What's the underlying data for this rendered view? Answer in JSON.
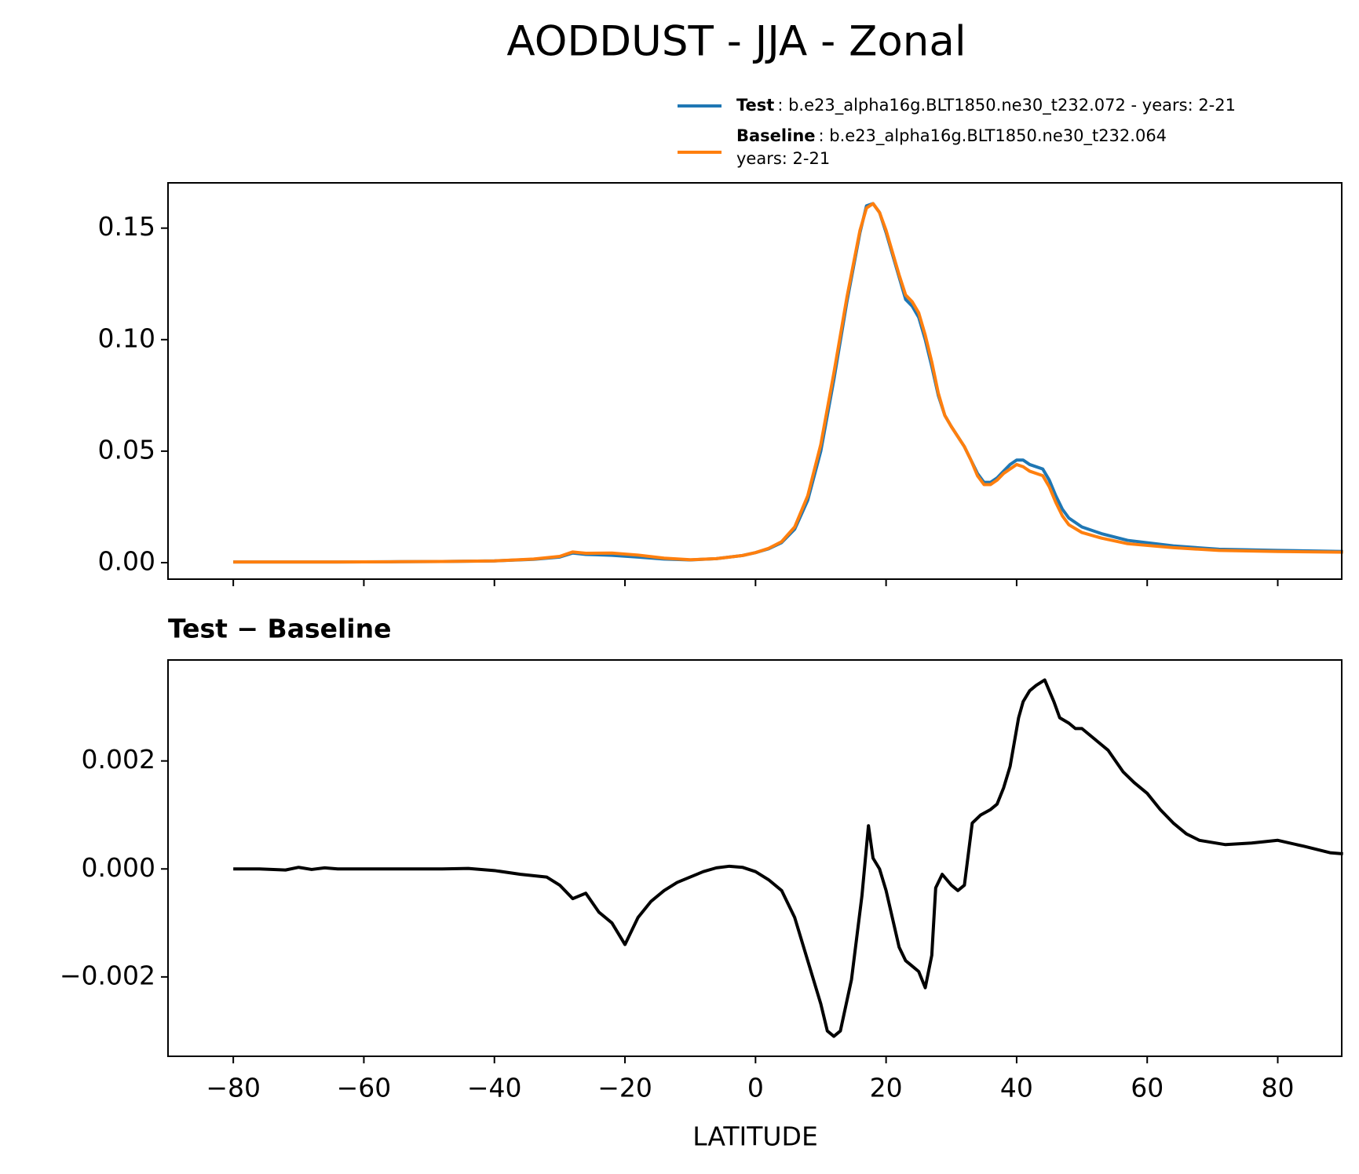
{
  "chart_data": [
    {
      "type": "line",
      "title": "AODDUST - JJA - Zonal",
      "x": [
        -80,
        -72,
        -64,
        -56,
        -48,
        -40,
        -34,
        -30,
        -28,
        -26,
        -22,
        -18,
        -14,
        -10,
        -6,
        -2,
        0,
        2,
        4,
        6,
        8,
        10,
        12,
        14,
        16,
        17,
        18,
        19,
        20,
        22,
        23,
        24,
        25,
        26,
        27,
        28,
        29,
        30,
        32,
        33,
        34,
        35,
        36,
        37,
        38,
        39,
        40,
        41,
        42,
        44,
        45,
        46,
        47,
        48,
        50,
        53,
        57,
        64,
        71,
        80,
        90
      ],
      "series": [
        {
          "name": "Test",
          "label_lines": [
            ": b.e23_alpha16g.BLT1850.ne30_t232.072 - years: 2-21"
          ],
          "color": "#1f77b4",
          "values": [
            0.0003,
            0.0003,
            0.0003,
            0.0004,
            0.0005,
            0.0008,
            0.0015,
            0.0025,
            0.0043,
            0.0037,
            0.0033,
            0.0025,
            0.0016,
            0.0012,
            0.0018,
            0.0032,
            0.0045,
            0.0062,
            0.009,
            0.015,
            0.028,
            0.05,
            0.082,
            0.117,
            0.148,
            0.16,
            0.161,
            0.157,
            0.148,
            0.128,
            0.118,
            0.115,
            0.11,
            0.1,
            0.088,
            0.075,
            0.066,
            0.061,
            0.052,
            0.046,
            0.04,
            0.036,
            0.036,
            0.038,
            0.041,
            0.044,
            0.046,
            0.046,
            0.044,
            0.042,
            0.037,
            0.03,
            0.024,
            0.02,
            0.016,
            0.013,
            0.01,
            0.0075,
            0.006,
            0.0055,
            0.005
          ]
        },
        {
          "name": "Baseline",
          "label_lines": [
            ": b.e23_alpha16g.BLT1850.ne30_t232.064",
            "years: 2-21"
          ],
          "color": "#ff7f0e",
          "values": [
            0.0003,
            0.0003,
            0.0003,
            0.0004,
            0.0005,
            0.0008,
            0.0016,
            0.0028,
            0.0048,
            0.0042,
            0.0043,
            0.0034,
            0.002,
            0.0013,
            0.0018,
            0.0032,
            0.0045,
            0.0064,
            0.0094,
            0.016,
            0.03,
            0.053,
            0.085,
            0.119,
            0.149,
            0.159,
            0.161,
            0.157,
            0.149,
            0.129,
            0.12,
            0.117,
            0.112,
            0.102,
            0.09,
            0.076,
            0.066,
            0.061,
            0.052,
            0.046,
            0.039,
            0.035,
            0.035,
            0.037,
            0.04,
            0.042,
            0.044,
            0.043,
            0.041,
            0.039,
            0.034,
            0.027,
            0.021,
            0.017,
            0.0135,
            0.011,
            0.0085,
            0.0067,
            0.0055,
            0.005,
            0.0047
          ]
        }
      ],
      "xlim": [
        -90,
        89.8
      ],
      "xticks": [
        -80,
        -60,
        -40,
        -20,
        0,
        20,
        40,
        60,
        80
      ],
      "ylim": [
        -0.0074,
        0.1703
      ],
      "yticks": [
        {
          "value": 0,
          "label": "0.00"
        },
        0.05,
        {
          "value": 0.1,
          "label": "0.10"
        },
        0.15
      ]
    },
    {
      "type": "line",
      "title": "Test − Baseline",
      "xlabel": "LATITUDE",
      "x": [
        -80,
        -76,
        -72,
        -70,
        -68,
        -66,
        -64,
        -56,
        -48,
        -44,
        -40,
        -36,
        -32,
        -30,
        -28,
        -26,
        -24,
        -22,
        -20,
        -18,
        -16,
        -14,
        -12,
        -10,
        -8,
        -6,
        -4,
        -2,
        0,
        2,
        4,
        6,
        8,
        10,
        11,
        12,
        13,
        14.7,
        16.3,
        17.3,
        18,
        19,
        20,
        22,
        23,
        24,
        25,
        26,
        27,
        27.6,
        28.6,
        30,
        31,
        32,
        33.2,
        34.5,
        36,
        37,
        38,
        39,
        40.3,
        41,
        42,
        43,
        44.3,
        45.7,
        46.6,
        48,
        49,
        50,
        52,
        54,
        56.3,
        58,
        60,
        62,
        64,
        66,
        68,
        72,
        76,
        80,
        84,
        88,
        90
      ],
      "series": [
        {
          "color": "#000000",
          "values": [
            0,
            0,
            -2e-05,
            3e-05,
            -1e-05,
            2e-05,
            0,
            0,
            0,
            1e-05,
            -3e-05,
            -0.0001,
            -0.00015,
            -0.0003,
            -0.00055,
            -0.00045,
            -0.0008,
            -0.001,
            -0.0014,
            -0.0009,
            -0.0006,
            -0.0004,
            -0.00025,
            -0.00015,
            -5e-05,
            2e-05,
            5e-05,
            3e-05,
            -5e-05,
            -0.0002,
            -0.0004,
            -0.0009,
            -0.0017,
            -0.0025,
            -0.003,
            -0.0031,
            -0.003,
            -0.00205,
            -0.0005,
            0.0008,
            0.0002,
            0,
            -0.0004,
            -0.00145,
            -0.0017,
            -0.0018,
            -0.0019,
            -0.0022,
            -0.0016,
            -0.00035,
            -0.0001,
            -0.0003,
            -0.0004,
            -0.0003,
            0.00085,
            0.001,
            0.0011,
            0.0012,
            0.0015,
            0.0019,
            0.0028,
            0.0031,
            0.0033,
            0.0034,
            0.0035,
            0.0031,
            0.0028,
            0.0027,
            0.0026,
            0.0026,
            0.0024,
            0.0022,
            0.0018,
            0.0016,
            0.0014,
            0.0011,
            0.00085,
            0.00065,
            0.00053,
            0.00045,
            0.00048,
            0.00053,
            0.00042,
            0.0003,
            0.00028
          ]
        }
      ],
      "xlim": [
        -90,
        89.8
      ],
      "xticks": [
        {
          "value": -80,
          "label": "−80"
        },
        {
          "value": -60,
          "label": "−60"
        },
        {
          "value": -40,
          "label": "−40"
        },
        {
          "value": -20,
          "label": "−20"
        },
        0,
        20,
        40,
        60,
        80
      ],
      "ylim": [
        -0.00347,
        0.00387
      ],
      "yticks": [
        {
          "value": -0.002,
          "label": "−0.002"
        },
        {
          "value": 0,
          "label": "0.000"
        },
        0.002
      ]
    }
  ]
}
